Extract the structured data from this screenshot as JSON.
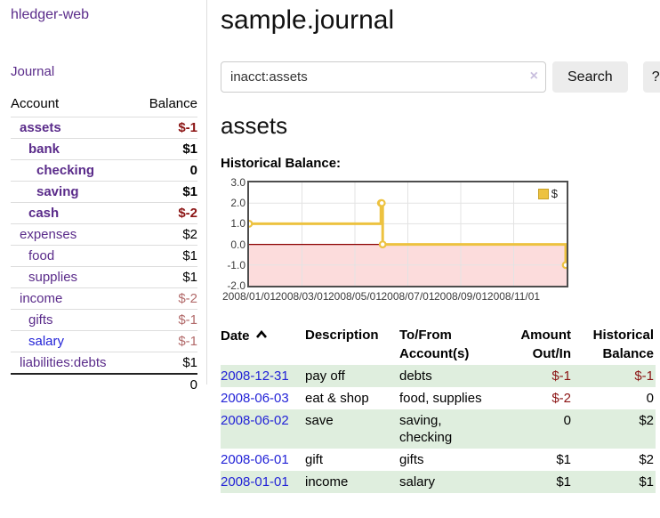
{
  "colors": {
    "purple_link": "#5a2b8a",
    "blue_link": "#2323d7",
    "negative_strong": "#8b1414",
    "negative_muted": "#b26a6a",
    "row_green": "#dfeede",
    "chart_line_gold": "#edc240",
    "chart_negative_fill": "#fcdcdc",
    "chart_zero_line": "#8b0000",
    "chart_border": "#4d4d4d"
  },
  "app": {
    "brand": "hledger-web",
    "nav_journal": "Journal"
  },
  "sidebar": {
    "header": {
      "account": "Account",
      "balance": "Balance"
    },
    "rows": [
      {
        "name": "assets",
        "indent": 1,
        "bold": true,
        "balance": "$-1",
        "balance_class": "neg-strong"
      },
      {
        "name": "bank",
        "indent": 2,
        "bold": true,
        "balance": "$1",
        "balance_class": ""
      },
      {
        "name": "checking",
        "indent": 3,
        "bold": true,
        "balance": "0",
        "balance_class": ""
      },
      {
        "name": "saving",
        "indent": 3,
        "bold": true,
        "balance": "$1",
        "balance_class": ""
      },
      {
        "name": "cash",
        "indent": 2,
        "bold": true,
        "balance": "$-2",
        "balance_class": "neg-strong"
      },
      {
        "name": "expenses",
        "indent": 1,
        "bold": false,
        "balance": "$2",
        "balance_class": ""
      },
      {
        "name": "food",
        "indent": 2,
        "bold": false,
        "balance": "$1",
        "balance_class": ""
      },
      {
        "name": "supplies",
        "indent": 2,
        "bold": false,
        "balance": "$1",
        "balance_class": ""
      },
      {
        "name": "income",
        "indent": 1,
        "bold": false,
        "balance": "$-2",
        "balance_class": "neg-muted"
      },
      {
        "name": "gifts",
        "indent": 2,
        "bold": false,
        "balance": "$-1",
        "balance_class": "neg-muted"
      },
      {
        "name": "salary",
        "indent": 2,
        "bold": false,
        "balance": "$-1",
        "balance_class": "neg-muted",
        "link_style": "blue"
      },
      {
        "name": "liabilities:debts",
        "indent": 1,
        "bold": false,
        "balance": "$1",
        "balance_class": ""
      }
    ],
    "total": "0"
  },
  "main": {
    "title": "sample.journal",
    "search": {
      "value": "inacct:assets",
      "clear_icon": "×",
      "button_label": "Search",
      "help_label": "?"
    },
    "account_heading": "assets",
    "chart_label": "Historical Balance:"
  },
  "chart_data": {
    "type": "line",
    "step": true,
    "title": "Historical Balance",
    "series": [
      {
        "name": "$",
        "points": [
          {
            "date": "2008-01-01",
            "value": 1
          },
          {
            "date": "2008-06-01",
            "value": 2
          },
          {
            "date": "2008-06-02",
            "value": 2
          },
          {
            "date": "2008-06-03",
            "value": 0
          },
          {
            "date": "2008-12-31",
            "value": -1
          }
        ]
      }
    ],
    "x_range": [
      "2008-01-01",
      "2009-01-01"
    ],
    "ylim": [
      -2,
      3
    ],
    "yticks": [
      "3.0",
      "2.0",
      "1.0",
      "0.0",
      "-1.0",
      "-2.0"
    ],
    "ytick_values": [
      3,
      2,
      1,
      0,
      -1,
      -2
    ],
    "xticks": [
      "2008/01/01",
      "2008/03/01",
      "2008/05/01",
      "2008/07/01",
      "2008/09/01",
      "2008/11/01"
    ],
    "legend": {
      "label": "$",
      "position": "top-right"
    },
    "grid": true,
    "negative_region_below": 0
  },
  "register": {
    "headers": {
      "date": "Date",
      "description": "Description",
      "account_line1": "To/From",
      "account_line2": "Account(s)",
      "amount_line1": "Amount",
      "amount_line2": "Out/In",
      "balance_line1": "Historical",
      "balance_line2": "Balance"
    },
    "rows": [
      {
        "date": "2008-12-31",
        "description": "pay off",
        "accounts": "debts",
        "amount": "$-1",
        "amount_negative": true,
        "balance": "$-1",
        "balance_negative": true
      },
      {
        "date": "2008-06-03",
        "description": "eat & shop",
        "accounts": "food, supplies",
        "amount": "$-2",
        "amount_negative": true,
        "balance": "0",
        "balance_negative": false
      },
      {
        "date": "2008-06-02",
        "description": "save",
        "accounts": "saving,\nchecking",
        "amount": "0",
        "amount_negative": false,
        "balance": "$2",
        "balance_negative": false
      },
      {
        "date": "2008-06-01",
        "description": "gift",
        "accounts": "gifts",
        "amount": "$1",
        "amount_negative": false,
        "balance": "$2",
        "balance_negative": false
      },
      {
        "date": "2008-01-01",
        "description": "income",
        "accounts": "salary",
        "amount": "$1",
        "amount_negative": false,
        "balance": "$1",
        "balance_negative": false
      }
    ]
  }
}
